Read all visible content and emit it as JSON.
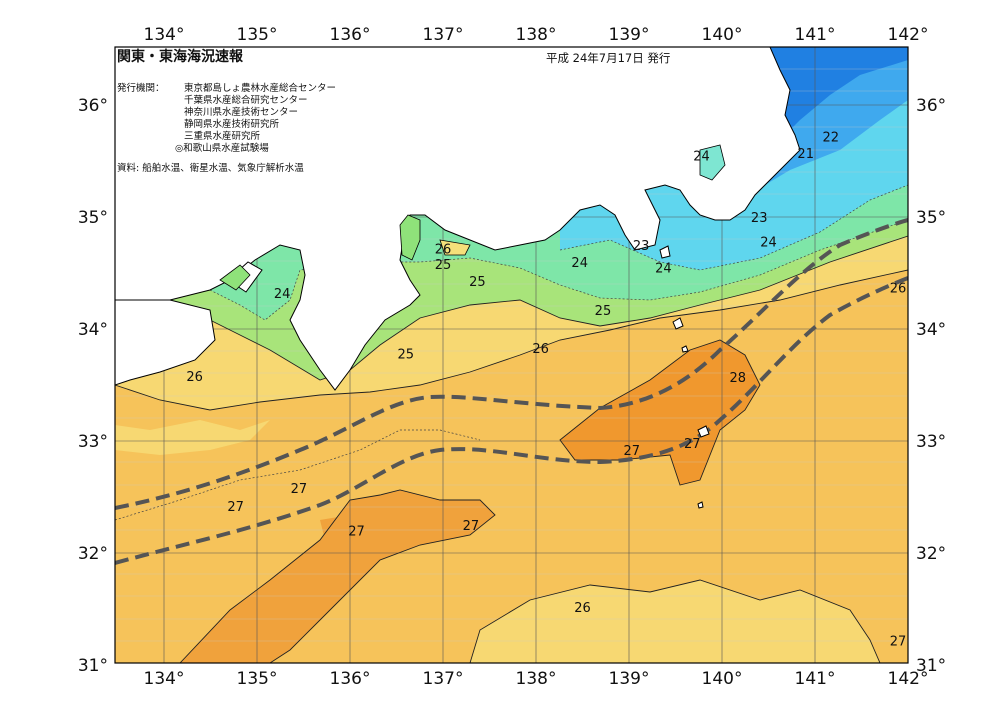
{
  "header": {
    "title": "関東・東海海況速報",
    "date": "平成 24年7月17日 発行"
  },
  "agencies": {
    "label": "発行機関：",
    "items": [
      "東京都島しょ農林水産総合センター",
      "千葉県水産総合研究センター",
      "神奈川県水産技術センター",
      "静岡県水産技術研究所",
      "三重県水産研究所",
      "◎和歌山県水産試験場"
    ]
  },
  "source": "資料: 船舶水温、衛星水温、気象庁解析水温",
  "axes": {
    "lon_labels": [
      "134°",
      "135°",
      "136°",
      "137°",
      "138°",
      "139°",
      "140°",
      "141°",
      "142°"
    ],
    "lat_labels": [
      "36°",
      "35°",
      "34°",
      "33°",
      "32°",
      "31°"
    ]
  },
  "isotherm_labels": [
    {
      "text": "22",
      "lon": 141.17,
      "lat": 35.72
    },
    {
      "text": "21",
      "lon": 140.9,
      "lat": 35.57
    },
    {
      "text": "24",
      "lon": 139.78,
      "lat": 35.55
    },
    {
      "text": "23",
      "lon": 140.4,
      "lat": 35.0
    },
    {
      "text": "24",
      "lon": 140.5,
      "lat": 34.78
    },
    {
      "text": "26",
      "lon": 137.0,
      "lat": 34.72
    },
    {
      "text": "25",
      "lon": 137.0,
      "lat": 34.58
    },
    {
      "text": "24",
      "lon": 135.27,
      "lat": 34.32
    },
    {
      "text": "25",
      "lon": 137.37,
      "lat": 34.43
    },
    {
      "text": "24",
      "lon": 138.47,
      "lat": 34.6
    },
    {
      "text": "23",
      "lon": 139.13,
      "lat": 34.75
    },
    {
      "text": "24",
      "lon": 139.37,
      "lat": 34.55
    },
    {
      "text": "25",
      "lon": 138.72,
      "lat": 34.17
    },
    {
      "text": "25",
      "lon": 136.6,
      "lat": 33.78
    },
    {
      "text": "26",
      "lon": 138.05,
      "lat": 33.83
    },
    {
      "text": "26",
      "lon": 134.33,
      "lat": 33.58
    },
    {
      "text": "28",
      "lon": 140.17,
      "lat": 33.57
    },
    {
      "text": "27",
      "lon": 139.03,
      "lat": 32.92
    },
    {
      "text": "27",
      "lon": 139.68,
      "lat": 32.98
    },
    {
      "text": "27",
      "lon": 135.45,
      "lat": 32.58
    },
    {
      "text": "27",
      "lon": 134.77,
      "lat": 32.42
    },
    {
      "text": "27",
      "lon": 137.3,
      "lat": 32.25
    },
    {
      "text": "27",
      "lon": 136.07,
      "lat": 32.2
    },
    {
      "text": "26",
      "lon": 138.5,
      "lat": 31.52
    },
    {
      "text": "26",
      "lon": 142.0,
      "lat": 34.37
    },
    {
      "text": "27",
      "lon": 141.95,
      "lat": 31.22
    }
  ],
  "colors": {
    "temp_21": "#1f6fe0",
    "temp_22": "#3b93ec",
    "temp_23": "#5fc4f2",
    "temp_24": "#7ee6d2",
    "temp_25": "#8fe27a",
    "temp_26": "#f5e07a",
    "temp_27": "#f6c35a",
    "temp_28": "#f0962a",
    "land": "#ffffff",
    "kuroshio_axis": "#555555"
  }
}
